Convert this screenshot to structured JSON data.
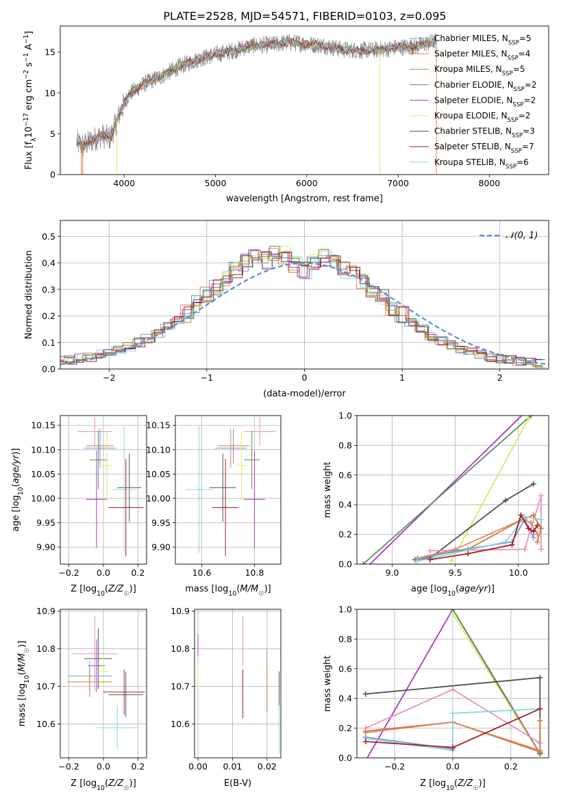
{
  "figure": {
    "title": "PLATE=2528, MJD=54571, FIBERID=0103, z=0.095"
  },
  "colors": {
    "chabrier_miles": "#7b98d8",
    "salpeter_miles": "#e0855c",
    "kroupa_miles": "#c87c3c",
    "chabrier_elodie": "#5a8c5a",
    "salpeter_elodie": "#a838c0",
    "kroupa_elodie": "#d8e860",
    "chabrier_stelib": "#505050",
    "salpeter_stelib": "#a81c1c",
    "kroupa_stelib": "#88d8d8",
    "gaussian": "#5b8bd8",
    "pink": "#e890c0",
    "data_grey": "#808080"
  },
  "chart_data": [
    {
      "id": "spectrum",
      "type": "line",
      "title": "PLATE=2528, MJD=54571, FIBERID=0103, z=0.095",
      "xlabel": "wavelength [Angstrom, rest frame]",
      "ylabel": "Flux [f_λ 10^-17 erg cm^-2 s^-1 A^-1]",
      "xlim": [
        3300,
        8650
      ],
      "ylim": [
        0,
        18.2
      ],
      "xticks": [
        4000,
        5000,
        6000,
        7000,
        8000
      ],
      "yticks": [
        0,
        5,
        10,
        15
      ],
      "grid": false,
      "legend_position": "right",
      "continuum": {
        "x": [
          3480,
          3550,
          3650,
          3750,
          3850,
          3950,
          4050,
          4150,
          4250,
          4400,
          4600,
          4800,
          5000,
          5200,
          5400,
          5600,
          5800,
          6000,
          6200,
          6400,
          6600,
          6800,
          7000,
          7200,
          7400
        ],
        "y": [
          3.9,
          3.5,
          4.2,
          4.8,
          4.5,
          7.5,
          9.8,
          10.6,
          11.3,
          12.0,
          13.2,
          14.1,
          14.7,
          15.2,
          15.8,
          15.9,
          16.2,
          16.0,
          15.8,
          15.3,
          15.2,
          15.3,
          15.6,
          15.7,
          16.3
        ]
      },
      "series": [
        {
          "name": "Chabrier MILES, N_SSP=5",
          "color_key": "chabrier_miles"
        },
        {
          "name": "Salpeter MILES, N_SSP=4",
          "color_key": "salpeter_miles"
        },
        {
          "name": "Kroupa MILES, N_SSP=5",
          "color_key": "kroupa_miles"
        },
        {
          "name": "Chabrier ELODIE, N_SSP=2",
          "color_key": "chabrier_elodie"
        },
        {
          "name": "Salpeter ELODIE, N_SSP=2",
          "color_key": "salpeter_elodie"
        },
        {
          "name": "Kroupa ELODIE, N_SSP=2",
          "color_key": "kroupa_elodie"
        },
        {
          "name": "Chabrier STELIB, N_SSP=3",
          "color_key": "chabrier_stelib"
        },
        {
          "name": "Salpeter STELIB, N_SSP=7",
          "color_key": "salpeter_stelib"
        },
        {
          "name": "Kroupa STELIB, N_SSP=6",
          "color_key": "kroupa_stelib"
        }
      ]
    },
    {
      "id": "residuals",
      "type": "line",
      "xlabel": "(data-model)/error",
      "ylabel": "Normed distribution",
      "xlim": [
        -2.5,
        2.5
      ],
      "ylim": [
        0,
        0.56
      ],
      "xticks": [
        -2,
        -1,
        0,
        1,
        2
      ],
      "yticks": [
        0.0,
        0.1,
        0.2,
        0.3,
        0.4,
        0.5
      ],
      "grid": true,
      "legend_position": "top-right",
      "gaussian_label": "𝒩(0, 1)",
      "bin_centers": [
        -2.45,
        -2.35,
        -2.25,
        -2.15,
        -2.05,
        -1.95,
        -1.85,
        -1.75,
        -1.65,
        -1.55,
        -1.45,
        -1.35,
        -1.25,
        -1.15,
        -1.05,
        -0.95,
        -0.85,
        -0.75,
        -0.65,
        -0.55,
        -0.45,
        -0.35,
        -0.25,
        -0.15,
        -0.05,
        0.05,
        0.15,
        0.25,
        0.35,
        0.45,
        0.55,
        0.65,
        0.75,
        0.85,
        0.95,
        1.05,
        1.15,
        1.25,
        1.35,
        1.45,
        1.55,
        1.65,
        1.75,
        1.85,
        1.95,
        2.05,
        2.15,
        2.25,
        2.35,
        2.45
      ],
      "hist_mean": [
        0.03,
        0.035,
        0.04,
        0.045,
        0.055,
        0.06,
        0.07,
        0.085,
        0.1,
        0.115,
        0.135,
        0.16,
        0.185,
        0.21,
        0.245,
        0.28,
        0.31,
        0.345,
        0.37,
        0.4,
        0.43,
        0.41,
        0.44,
        0.43,
        0.39,
        0.37,
        0.41,
        0.42,
        0.4,
        0.375,
        0.355,
        0.33,
        0.29,
        0.265,
        0.235,
        0.205,
        0.175,
        0.15,
        0.12,
        0.105,
        0.09,
        0.075,
        0.065,
        0.055,
        0.045,
        0.04,
        0.035,
        0.03,
        0.025,
        0.02
      ],
      "series": [
        {
          "color_key": "chabrier_miles"
        },
        {
          "color_key": "salpeter_miles"
        },
        {
          "color_key": "kroupa_miles"
        },
        {
          "color_key": "chabrier_elodie"
        },
        {
          "color_key": "salpeter_elodie"
        },
        {
          "color_key": "kroupa_elodie"
        },
        {
          "color_key": "chabrier_stelib"
        },
        {
          "color_key": "salpeter_stelib"
        },
        {
          "color_key": "kroupa_stelib"
        }
      ]
    },
    {
      "id": "age_vs_Z",
      "type": "scatter",
      "xlabel": "Z [log10(Z/Z☉)]",
      "ylabel": "age [log10(age/yr)]",
      "xlim": [
        -0.25,
        0.25
      ],
      "ylim": [
        9.865,
        10.17
      ],
      "xticks": [
        -0.2,
        0.0,
        0.2
      ],
      "yticks": [
        9.9,
        9.95,
        10.0,
        10.05,
        10.1,
        10.15
      ],
      "grid": true,
      "points": [
        {
          "c": "pink",
          "x": -0.05,
          "xerr": 0.1,
          "y": 10.137,
          "yerr": 0.03
        },
        {
          "c": "kroupa_miles",
          "x": -0.02,
          "xerr": 0.08,
          "y": 10.108,
          "yerr": 0.035
        },
        {
          "c": "chabrier_miles",
          "x": -0.02,
          "xerr": 0.09,
          "y": 10.103,
          "yerr": 0.04
        },
        {
          "c": "chabrier_elodie",
          "x": -0.03,
          "xerr": 0.05,
          "y": 10.079,
          "yerr": 0.06
        },
        {
          "c": "kroupa_elodie",
          "x": 0.02,
          "xerr": 0.03,
          "y": 10.068,
          "yerr": 0.07
        },
        {
          "c": "salpeter_elodie",
          "x": -0.04,
          "xerr": 0.06,
          "y": 9.998,
          "yerr": 0.1
        },
        {
          "c": "chabrier_stelib",
          "x": 0.15,
          "xerr": 0.07,
          "y": 10.022,
          "yerr": 0.07
        },
        {
          "c": "kroupa_stelib",
          "x": 0.12,
          "xerr": 0.07,
          "y": 10.018,
          "yerr": 0.13
        },
        {
          "c": "salpeter_stelib",
          "x": 0.13,
          "xerr": 0.1,
          "y": 9.981,
          "yerr": 0.1
        }
      ]
    },
    {
      "id": "age_vs_mass",
      "type": "scatter",
      "xlabel": "mass [log10(M/M☉)]",
      "ylabel": "",
      "xlim": [
        10.5,
        10.9
      ],
      "ylim": [
        9.865,
        10.17
      ],
      "xticks": [
        10.6,
        10.8
      ],
      "yticks": [
        9.9,
        9.95,
        10.0,
        10.05,
        10.1,
        10.15
      ],
      "grid": true,
      "points": [
        {
          "c": "pink",
          "x": 10.82,
          "xerr": 0.06,
          "y": 10.137,
          "yerr": 0.03
        },
        {
          "c": "kroupa_miles",
          "x": 10.72,
          "xerr": 0.06,
          "y": 10.108,
          "yerr": 0.035
        },
        {
          "c": "chabrier_miles",
          "x": 10.71,
          "xerr": 0.06,
          "y": 10.103,
          "yerr": 0.04
        },
        {
          "c": "chabrier_elodie",
          "x": 10.79,
          "xerr": 0.03,
          "y": 10.079,
          "yerr": 0.06
        },
        {
          "c": "kroupa_elodie",
          "x": 10.75,
          "xerr": 0.02,
          "y": 10.068,
          "yerr": 0.07
        },
        {
          "c": "salpeter_elodie",
          "x": 10.8,
          "xerr": 0.04,
          "y": 9.998,
          "yerr": 0.1
        },
        {
          "c": "chabrier_stelib",
          "x": 10.68,
          "xerr": 0.05,
          "y": 10.022,
          "yerr": 0.07
        },
        {
          "c": "kroupa_stelib",
          "x": 10.59,
          "xerr": 0.05,
          "y": 10.018,
          "yerr": 0.13
        },
        {
          "c": "salpeter_stelib",
          "x": 10.69,
          "xerr": 0.05,
          "y": 9.981,
          "yerr": 0.1
        }
      ]
    },
    {
      "id": "mass_weight_vs_age",
      "type": "line",
      "xlabel": "age [log10(age/yr)]",
      "ylabel": "mass weight",
      "xlim": [
        8.72,
        10.24
      ],
      "ylim": [
        0,
        1.0
      ],
      "xticks": [
        9.0,
        9.5,
        10.0
      ],
      "yticks": [
        0.0,
        0.2,
        0.4,
        0.6,
        0.8,
        1.0
      ],
      "grid": true,
      "series": [
        {
          "c": "salpeter_elodie",
          "x": [
            8.8,
            10.05
          ],
          "y": [
            -0.02,
            1.02
          ]
        },
        {
          "c": "chabrier_elodie",
          "x": [
            8.77,
            10.1
          ],
          "y": [
            0.0,
            1.0
          ]
        },
        {
          "c": "kroupa_elodie",
          "x": [
            9.47,
            10.08
          ],
          "y": [
            0.02,
            0.98
          ]
        },
        {
          "c": "chabrier_stelib",
          "x": [
            9.18,
            9.3,
            9.9,
            10.12
          ],
          "y": [
            0.03,
            0.04,
            0.43,
            0.54
          ]
        },
        {
          "c": "pink",
          "x": [
            9.3,
            10.05,
            10.18,
            10.18
          ],
          "y": [
            0.09,
            0.1,
            0.46,
            0.1
          ]
        },
        {
          "c": "kroupa_miles",
          "x": [
            9.2,
            9.6,
            10.03,
            10.12,
            10.18,
            10.15
          ],
          "y": [
            0.04,
            0.1,
            0.3,
            0.33,
            0.24,
            0.15
          ]
        },
        {
          "c": "salpeter_miles",
          "x": [
            9.2,
            9.5,
            10.03,
            10.1,
            10.15
          ],
          "y": [
            0.04,
            0.1,
            0.3,
            0.28,
            0.2
          ]
        },
        {
          "c": "chabrier_miles",
          "x": [
            9.2,
            9.5,
            9.95,
            10.05,
            10.12
          ],
          "y": [
            0.03,
            0.09,
            0.15,
            0.3,
            0.18
          ]
        },
        {
          "c": "kroupa_stelib",
          "x": [
            9.2,
            9.9,
            10.05,
            10.18
          ],
          "y": [
            0.02,
            0.15,
            0.32,
            0.3
          ]
        },
        {
          "c": "salpeter_stelib",
          "x": [
            9.3,
            9.6,
            9.95,
            10.02,
            10.08,
            10.12,
            10.15
          ],
          "y": [
            0.03,
            0.07,
            0.13,
            0.33,
            0.24,
            0.22,
            0.26
          ]
        }
      ]
    },
    {
      "id": "mass_vs_Z",
      "type": "scatter",
      "xlabel": "Z [log10(Z/Z☉)]",
      "ylabel": "mass [log10(M/M☉)]",
      "xlim": [
        -0.25,
        0.25
      ],
      "ylim": [
        10.51,
        10.905
      ],
      "xticks": [
        -0.2,
        0.0,
        0.2
      ],
      "yticks": [
        10.6,
        10.7,
        10.8,
        10.9
      ],
      "grid": true,
      "points": [
        {
          "c": "pink",
          "x": -0.05,
          "xerr": 0.13,
          "y": 10.787,
          "yerr": 0.1
        },
        {
          "c": "chabrier_stelib",
          "x": -0.03,
          "xerr": 0.08,
          "y": 10.774,
          "yerr": 0.08
        },
        {
          "c": "salpeter_elodie",
          "x": -0.04,
          "xerr": 0.05,
          "y": 10.755,
          "yerr": 0.07
        },
        {
          "c": "kroupa_elodie",
          "x": 0.0,
          "xerr": 0.03,
          "y": 10.74,
          "yerr": 0.04
        },
        {
          "c": "chabrier_miles",
          "x": -0.08,
          "xerr": 0.13,
          "y": 10.728,
          "yerr": 0.04
        },
        {
          "c": "kroupa_miles",
          "x": -0.08,
          "xerr": 0.13,
          "y": 10.712,
          "yerr": 0.04
        },
        {
          "c": "salpeter_stelib",
          "x": 0.12,
          "xerr": 0.12,
          "y": 10.685,
          "yerr": 0.06
        },
        {
          "c": "chabrier_stelib",
          "x": 0.13,
          "xerr": 0.1,
          "y": 10.678,
          "yerr": 0.06
        },
        {
          "c": "kroupa_stelib",
          "x": 0.08,
          "xerr": 0.12,
          "y": 10.59,
          "yerr": 0.06
        }
      ]
    },
    {
      "id": "mass_vs_ebv",
      "type": "scatter",
      "xlabel": "E(B-V)",
      "ylabel": "",
      "xlim": [
        -0.001,
        0.024
      ],
      "ylim": [
        10.51,
        10.905
      ],
      "xticks": [
        0.0,
        0.01,
        0.02
      ],
      "yticks": [
        10.6,
        10.7,
        10.8,
        10.9
      ],
      "grid": true,
      "points": [
        {
          "c": "salpeter_elodie",
          "x": 0.0,
          "xerr": 0,
          "y": 10.81,
          "yerr": 0.03
        },
        {
          "c": "kroupa_elodie",
          "x": 0.0,
          "xerr": 0,
          "y": 10.73,
          "yerr": 0.03
        },
        {
          "c": "pink",
          "x": 0.013,
          "xerr": 0,
          "y": 10.82,
          "yerr": 0.065
        },
        {
          "c": "salpeter_stelib",
          "x": 0.013,
          "xerr": 0,
          "y": 10.68,
          "yerr": 0.065
        },
        {
          "c": "chabrier_miles",
          "x": 0.02,
          "xerr": 0,
          "y": 10.78,
          "yerr": 0.02
        },
        {
          "c": "kroupa_miles",
          "x": 0.02,
          "xerr": 0,
          "y": 10.695,
          "yerr": 0.065
        },
        {
          "c": "chabrier_stelib",
          "x": 0.0235,
          "xerr": 0,
          "y": 10.69,
          "yerr": 0.05
        },
        {
          "c": "kroupa_stelib",
          "x": 0.0235,
          "xerr": 0,
          "y": 10.585,
          "yerr": 0.065
        }
      ]
    },
    {
      "id": "mass_weight_vs_Z",
      "type": "line",
      "xlabel": "Z [log10(Z/Z☉)]",
      "ylabel": "mass weight",
      "xlim": [
        -0.33,
        0.33
      ],
      "ylim": [
        0,
        1.0
      ],
      "xticks": [
        -0.2,
        0.0,
        0.2
      ],
      "yticks": [
        0.0,
        0.2,
        0.4,
        0.6,
        0.8,
        1.0
      ],
      "grid": true,
      "series": [
        {
          "c": "salpeter_elodie",
          "x": [
            -0.3,
            0.0,
            0.3
          ],
          "y": [
            -0.02,
            1.0,
            0.03
          ]
        },
        {
          "c": "chabrier_elodie",
          "x": [
            0.0,
            0.3
          ],
          "y": [
            1.0,
            0.02
          ]
        },
        {
          "c": "kroupa_elodie",
          "x": [
            0.0,
            0.3
          ],
          "y": [
            0.97,
            0.02
          ]
        },
        {
          "c": "chabrier_stelib",
          "x": [
            -0.3,
            0.3,
            0.3
          ],
          "y": [
            0.43,
            0.54,
            0.03
          ]
        },
        {
          "c": "pink",
          "x": [
            -0.3,
            0.0,
            0.3
          ],
          "y": [
            0.2,
            0.46,
            0.1
          ]
        },
        {
          "c": "kroupa_miles",
          "x": [
            -0.3,
            0.0,
            0.3,
            0.3
          ],
          "y": [
            0.18,
            0.24,
            0.04,
            0.25
          ]
        },
        {
          "c": "salpeter_miles",
          "x": [
            -0.3,
            0.0,
            0.3
          ],
          "y": [
            0.17,
            0.24,
            0.05
          ]
        },
        {
          "c": "kroupa_stelib",
          "x": [
            -0.3,
            0.0,
            0.0,
            0.3
          ],
          "y": [
            0.13,
            0.05,
            0.3,
            0.33
          ]
        },
        {
          "c": "chabrier_miles",
          "x": [
            -0.3,
            0.0
          ],
          "y": [
            0.14,
            0.06
          ]
        },
        {
          "c": "salpeter_stelib",
          "x": [
            -0.3,
            0.0,
            0.3
          ],
          "y": [
            0.11,
            0.07,
            0.33
          ]
        }
      ]
    }
  ]
}
